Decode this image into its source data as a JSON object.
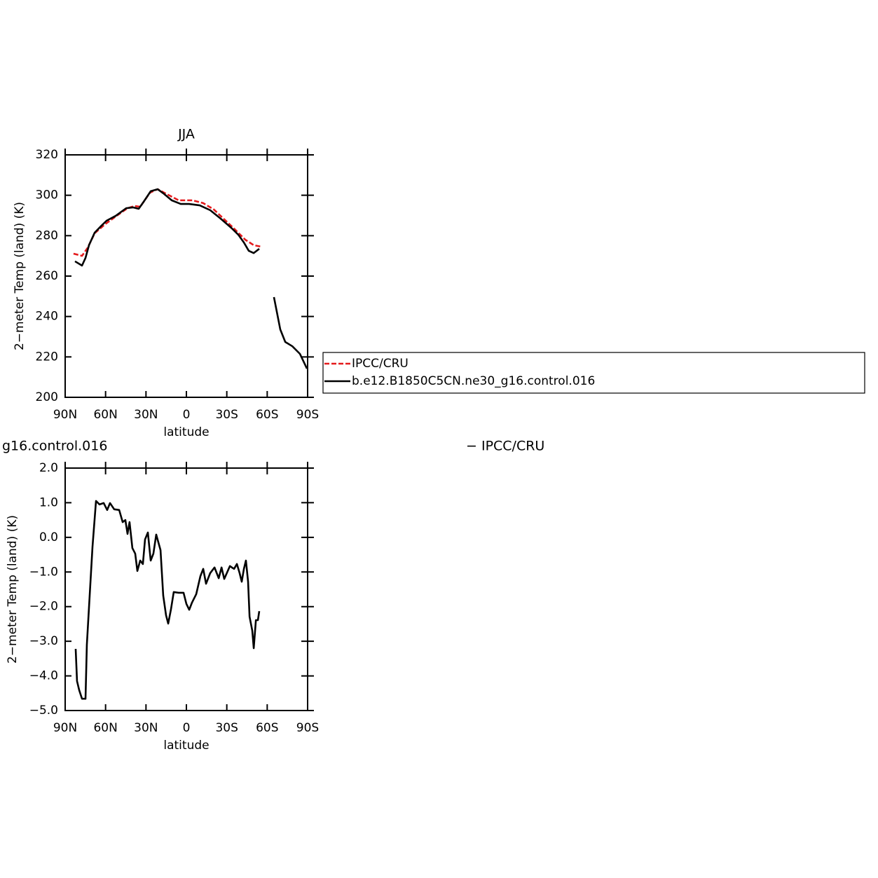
{
  "chart_data": [
    {
      "type": "line",
      "title": "JJA",
      "xlabel": "latitude",
      "ylabel": "2−meter Temp (land) (K)",
      "xlim": [
        90,
        -90
      ],
      "xticks": [
        {
          "value": 90,
          "label": "90N"
        },
        {
          "value": 60,
          "label": "60N"
        },
        {
          "value": 30,
          "label": "30N"
        },
        0,
        {
          "value": -30,
          "label": "30S"
        },
        {
          "value": -60,
          "label": "60S"
        },
        {
          "value": -90,
          "label": "90S"
        }
      ],
      "ylim": [
        200,
        320
      ],
      "yticks": [
        200,
        220,
        240,
        260,
        280,
        300,
        320
      ],
      "series": [
        {
          "name": "IPCC/CRU",
          "color": "#e41a1c",
          "dash": true,
          "x": [
            83.8,
            77.5,
            73.4,
            68.1,
            60.3,
            51,
            43.7,
            38.5,
            34.3,
            27,
            21.3,
            14.6,
            5.7,
            -4.7,
            -12.5,
            -20.3,
            -28.1,
            -35.9,
            -43.7,
            -50,
            -55.2
          ],
          "values": [
            271.1,
            270,
            273.9,
            281.2,
            285.7,
            290.2,
            293.6,
            294.7,
            294.3,
            301.3,
            303,
            300.6,
            297.5,
            297.5,
            296.1,
            293,
            288.1,
            283.2,
            278,
            275.3,
            274.6
          ]
        },
        {
          "name": "b.e12.B1850C5CN.ne30_g16.control.016",
          "color": "#000000",
          "dash": false,
          "x": [
            82.7,
            77.5,
            74.9,
            72.3,
            68.1,
            63,
            59.3,
            52.5,
            44.7,
            39.5,
            35.4,
            31.7,
            26.5,
            21.3,
            17.2,
            10.9,
            4.2,
            -2,
            -9.9,
            -17.7,
            -25.5,
            -33.3,
            -38.5,
            -42.7,
            -46.3,
            -50,
            -54.1,
            -60,
            -65,
            -69.7,
            -73.4,
            -78.6,
            -84.3,
            -89.5
          ],
          "values": [
            267.3,
            265.2,
            269,
            275.3,
            281.5,
            285,
            287.4,
            289.8,
            293.6,
            294,
            293.3,
            296.8,
            302,
            303,
            301,
            297.5,
            295.7,
            295.7,
            295,
            292.6,
            288.4,
            283.9,
            280.5,
            276.6,
            272.5,
            271.4,
            273.5,
            null,
            249.6,
            233.6,
            227.4,
            225.3,
            221.5,
            214.2
          ]
        }
      ]
    },
    {
      "type": "line",
      "title_parts": [
        "g16.control.016",
        "− IPCC/CRU"
      ],
      "xlabel": "latitude",
      "ylabel": "2−meter Temp (land) (K)",
      "xlim": [
        90,
        -90
      ],
      "xticks": [
        {
          "value": 90,
          "label": "90N"
        },
        {
          "value": 60,
          "label": "60N"
        },
        {
          "value": 30,
          "label": "30N"
        },
        0,
        {
          "value": -30,
          "label": "30S"
        },
        {
          "value": -60,
          "label": "60S"
        },
        {
          "value": -90,
          "label": "90S"
        }
      ],
      "ylim": [
        -5,
        2
      ],
      "yticks": [
        {
          "value": -5,
          "label": "−5.0"
        },
        {
          "value": -4,
          "label": "−4.0"
        },
        {
          "value": -3,
          "label": "−3.0"
        },
        {
          "value": -2,
          "label": "−2.0"
        },
        {
          "value": -1,
          "label": "−1.0"
        },
        {
          "value": 0,
          "label": "0.0"
        },
        {
          "value": 1,
          "label": "1.0"
        },
        {
          "value": 2,
          "label": "2.0"
        }
      ],
      "series": [
        {
          "color": "#000000",
          "dash": false,
          "x": [
            82.2,
            81.2,
            79.6,
            77.5,
            74.9,
            73.9,
            71.8,
            69.7,
            67.1,
            64.5,
            61.4,
            58.8,
            56.7,
            53.6,
            49.9,
            47.3,
            45.3,
            43.7,
            42.2,
            40.1,
            38,
            36.4,
            34.3,
            32.3,
            30.7,
            28.6,
            26.5,
            24.5,
            22.4,
            19.2,
            17.2,
            15.1,
            13.5,
            11.5,
            9.4,
            5.7,
            2.1,
            0,
            -2.1,
            -4.2,
            -7.3,
            -10.4,
            -12.5,
            -14.6,
            -17.7,
            -20.9,
            -24,
            -26.1,
            -28.1,
            -32.3,
            -33.8,
            -35.4,
            -37.5,
            -39.5,
            -41.1,
            -42.7,
            -44.2,
            -45.8,
            -46.9,
            -48.9,
            -50,
            -51.6,
            -53.1,
            -54.1
          ],
          "values": [
            -3.22,
            -4.15,
            -4.41,
            -4.66,
            -4.66,
            -3.1,
            -1.68,
            -0.27,
            1.05,
            0.95,
            0.99,
            0.79,
            0.99,
            0.81,
            0.79,
            0.44,
            0.5,
            0.1,
            0.44,
            -0.31,
            -0.47,
            -0.97,
            -0.67,
            -0.77,
            -0.06,
            0.14,
            -0.67,
            -0.47,
            0.08,
            -0.37,
            -1.68,
            -2.25,
            -2.49,
            -2.09,
            -1.58,
            -1.6,
            -1.6,
            -1.92,
            -2.09,
            -1.88,
            -1.64,
            -1.12,
            -0.91,
            -1.34,
            -1.03,
            -0.87,
            -1.18,
            -0.87,
            -1.2,
            -0.83,
            -0.87,
            -0.91,
            -0.77,
            -1.03,
            -1.28,
            -0.91,
            -0.67,
            -1.28,
            -2.29,
            -2.69,
            -3.2,
            -2.39,
            -2.39,
            -2.13
          ]
        }
      ]
    }
  ]
}
